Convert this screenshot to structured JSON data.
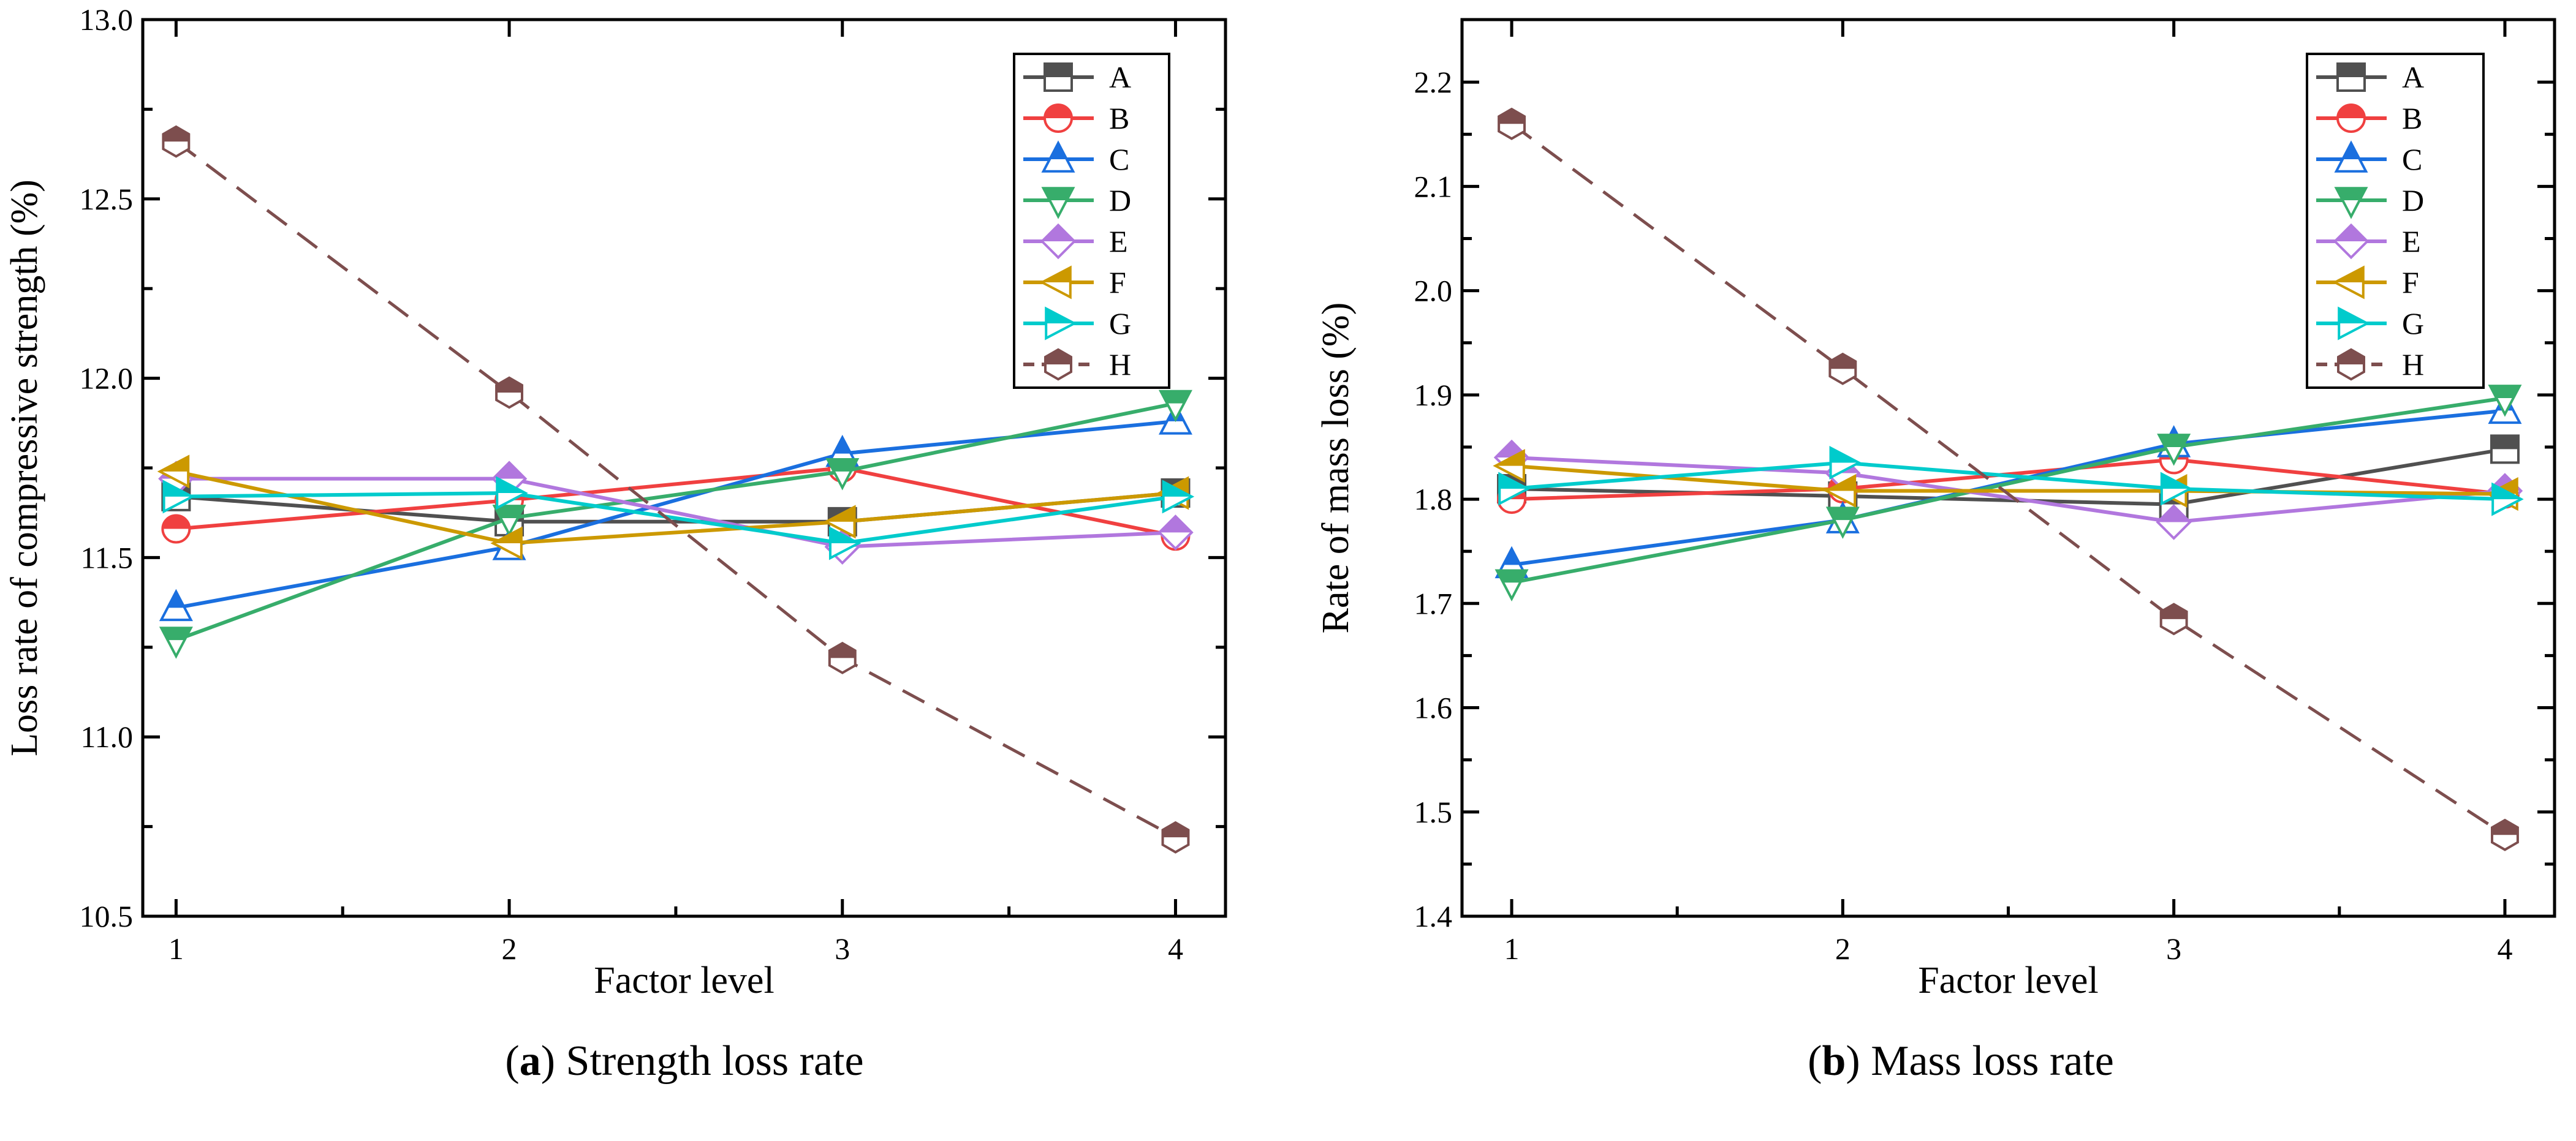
{
  "chart_data": [
    {
      "type": "line",
      "caption_letter": "a",
      "caption_text": "Strength loss rate",
      "xlabel": "Factor level",
      "ylabel": "Loss rate of compressive strength (%)",
      "x": [
        1,
        2,
        3,
        4
      ],
      "xlim": [
        0.9,
        4.15
      ],
      "ylim": [
        10.5,
        13.0
      ],
      "yticks": [
        "10.5",
        "11.0",
        "11.5",
        "12.0",
        "12.5",
        "13.0"
      ],
      "ytick_values": [
        10.5,
        11.0,
        11.5,
        12.0,
        12.5,
        13.0
      ],
      "legend_position": "top-right",
      "series": [
        {
          "name": "A",
          "color": "#505050",
          "marker": "square",
          "values": [
            11.67,
            11.6,
            11.6,
            11.68
          ]
        },
        {
          "name": "B",
          "color": "#f04040",
          "marker": "circle",
          "values": [
            11.58,
            11.66,
            11.75,
            11.56
          ]
        },
        {
          "name": "C",
          "color": "#1a6fdf",
          "marker": "triangle-up",
          "values": [
            11.36,
            11.53,
            11.79,
            11.88
          ]
        },
        {
          "name": "D",
          "color": "#37ad6b",
          "marker": "triangle-down",
          "values": [
            11.27,
            11.61,
            11.74,
            11.93
          ]
        },
        {
          "name": "E",
          "color": "#b177de",
          "marker": "diamond",
          "values": [
            11.72,
            11.72,
            11.53,
            11.57
          ]
        },
        {
          "name": "F",
          "color": "#cc9900",
          "marker": "triangle-left",
          "values": [
            11.74,
            11.54,
            11.6,
            11.68
          ]
        },
        {
          "name": "G",
          "color": "#00cbcc",
          "marker": "triangle-right",
          "values": [
            11.67,
            11.68,
            11.54,
            11.67
          ]
        },
        {
          "name": "H",
          "color": "#7d4e4e",
          "marker": "hexagon",
          "dashed": true,
          "values": [
            12.66,
            11.96,
            11.22,
            10.72
          ]
        }
      ]
    },
    {
      "type": "line",
      "caption_letter": "b",
      "caption_text": "Mass loss rate",
      "xlabel": "Factor level",
      "ylabel": "Rate of mass loss (%)",
      "x": [
        1,
        2,
        3,
        4
      ],
      "xlim": [
        0.85,
        4.15
      ],
      "ylim": [
        1.4,
        2.26
      ],
      "yticks": [
        "1.4",
        "1.5",
        "1.6",
        "1.7",
        "1.8",
        "1.9",
        "2.0",
        "2.1",
        "2.2"
      ],
      "ytick_values": [
        1.4,
        1.5,
        1.6,
        1.7,
        1.8,
        1.9,
        2.0,
        2.1,
        2.2
      ],
      "legend_position": "top-right",
      "series": [
        {
          "name": "A",
          "color": "#505050",
          "marker": "square",
          "values": [
            1.81,
            1.803,
            1.795,
            1.848
          ]
        },
        {
          "name": "B",
          "color": "#f04040",
          "marker": "circle",
          "values": [
            1.8,
            1.81,
            1.838,
            1.805
          ]
        },
        {
          "name": "C",
          "color": "#1a6fdf",
          "marker": "triangle-up",
          "values": [
            1.737,
            1.78,
            1.853,
            1.885
          ]
        },
        {
          "name": "D",
          "color": "#37ad6b",
          "marker": "triangle-down",
          "values": [
            1.72,
            1.78,
            1.85,
            1.897
          ]
        },
        {
          "name": "E",
          "color": "#b177de",
          "marker": "diamond",
          "values": [
            1.84,
            1.825,
            1.778,
            1.808
          ]
        },
        {
          "name": "F",
          "color": "#cc9900",
          "marker": "triangle-left",
          "values": [
            1.832,
            1.808,
            1.808,
            1.805
          ]
        },
        {
          "name": "G",
          "color": "#00cbcc",
          "marker": "triangle-right",
          "values": [
            1.81,
            1.835,
            1.81,
            1.8
          ]
        },
        {
          "name": "H",
          "color": "#7d4e4e",
          "marker": "hexagon",
          "dashed": true,
          "values": [
            2.16,
            1.925,
            1.685,
            1.478
          ]
        }
      ]
    }
  ]
}
